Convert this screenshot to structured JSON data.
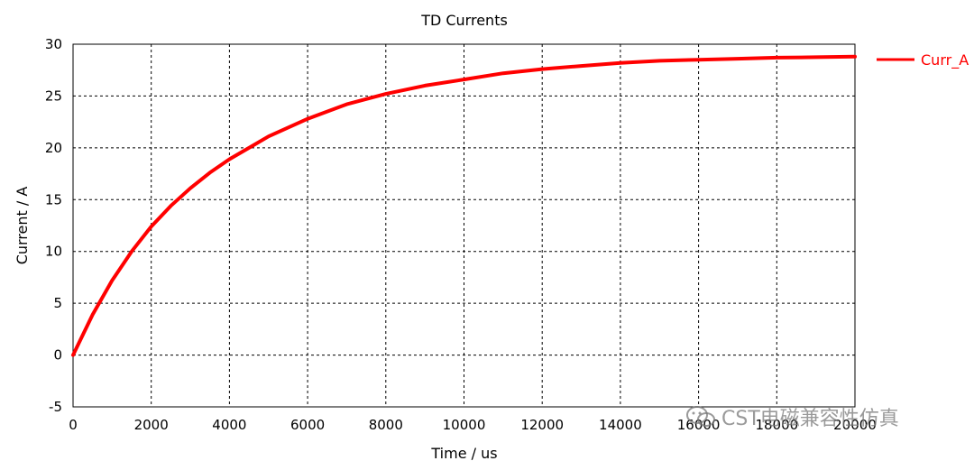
{
  "colors": {
    "series": "#ff0000",
    "grid": "#000000",
    "text": "#000000"
  },
  "chart_data": {
    "type": "line",
    "title": "TD Currents",
    "xlabel": "Time / us",
    "ylabel": "Current / A",
    "xlim": [
      0,
      20000
    ],
    "ylim": [
      -5,
      30
    ],
    "xticks": [
      0,
      2000,
      4000,
      6000,
      8000,
      10000,
      12000,
      14000,
      16000,
      18000,
      20000
    ],
    "yticks": [
      -5,
      0,
      5,
      10,
      15,
      20,
      25,
      30
    ],
    "grid": true,
    "legend_position": "right",
    "series": [
      {
        "name": "Curr_A",
        "color": "#ff0000",
        "x": [
          0,
          500,
          1000,
          1500,
          2000,
          2500,
          3000,
          3500,
          4000,
          4500,
          5000,
          6000,
          7000,
          8000,
          9000,
          10000,
          11000,
          12000,
          13000,
          14000,
          15000,
          16000,
          17000,
          18000,
          19000,
          20000
        ],
        "y": [
          0,
          3.9,
          7.2,
          10.0,
          12.4,
          14.4,
          16.1,
          17.6,
          18.9,
          20.0,
          21.1,
          22.8,
          24.2,
          25.2,
          26.0,
          26.6,
          27.2,
          27.6,
          27.9,
          28.2,
          28.4,
          28.5,
          28.6,
          28.7,
          28.75,
          28.8
        ]
      }
    ]
  },
  "watermark": {
    "text": "CST电磁兼容性仿真",
    "icon": "wechat-icon"
  }
}
